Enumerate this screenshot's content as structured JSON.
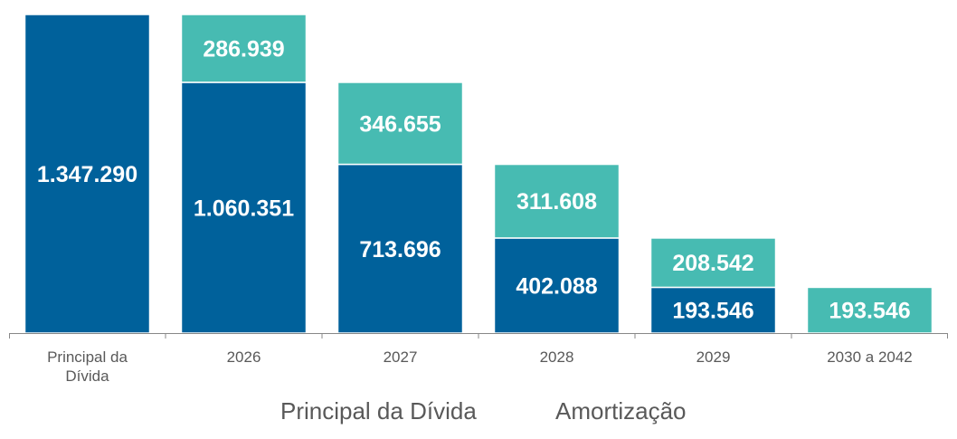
{
  "chart_data": {
    "type": "bar",
    "subtype": "stacked-waterfall",
    "categories": [
      [
        "Principal da",
        "Dívida"
      ],
      [
        "2026"
      ],
      [
        "2027"
      ],
      [
        "2028"
      ],
      [
        "2029"
      ],
      [
        "2030 a 2042"
      ]
    ],
    "series": [
      {
        "name": "Principal da Dívida",
        "color": "#00619B",
        "values": [
          1347290,
          1060351,
          713696,
          402088,
          193546,
          0
        ]
      },
      {
        "name": "Amortização",
        "color": "#47BBB2",
        "values": [
          0,
          286939,
          346655,
          311608,
          208542,
          193546
        ]
      }
    ],
    "ylim": [
      0,
      1347290
    ],
    "grid": false,
    "legend": {
      "placement": "bottom",
      "entries": [
        "Principal da Dívida",
        "Amortização"
      ]
    },
    "title": "",
    "xlabel": "",
    "ylabel": ""
  }
}
